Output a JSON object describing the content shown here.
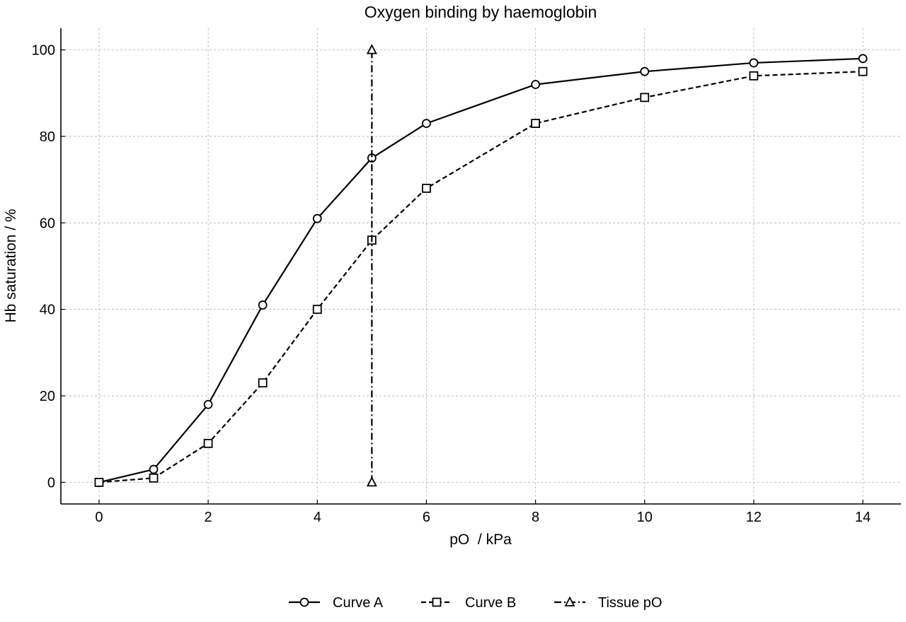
{
  "chart_data": {
    "type": "line",
    "title": "Oxygen binding by haemoglobin",
    "xlabel": "pO  / kPa",
    "ylabel": "Hb saturation / %",
    "xlim": [
      -0.7,
      14.7
    ],
    "ylim": [
      -5,
      105
    ],
    "xticks": [
      0,
      2,
      4,
      6,
      8,
      10,
      12,
      14
    ],
    "yticks": [
      0,
      20,
      40,
      60,
      80,
      100
    ],
    "grid": true,
    "legend_position": "bottom-center",
    "series": [
      {
        "name": "Curve A",
        "marker": "circle",
        "linestyle": "solid",
        "x": [
          0,
          1,
          2,
          3,
          4,
          5,
          6,
          8,
          10,
          12,
          14
        ],
        "y": [
          0,
          3,
          18,
          41,
          61,
          75,
          83,
          92,
          95,
          97,
          98
        ]
      },
      {
        "name": "Curve B",
        "marker": "square",
        "linestyle": "dashed",
        "x": [
          0,
          1,
          2,
          3,
          4,
          5,
          6,
          8,
          10,
          12,
          14
        ],
        "y": [
          0,
          1,
          9,
          23,
          40,
          56,
          68,
          83,
          89,
          94,
          95
        ]
      },
      {
        "name": "Tissue pO",
        "marker": "triangle",
        "linestyle": "dashdot",
        "x": [
          5,
          5
        ],
        "y": [
          0,
          100
        ]
      }
    ]
  },
  "colors": {
    "line": "#000000",
    "grid": "#b0b0b0",
    "marker_fill": "#ffffff",
    "background": "#ffffff"
  }
}
